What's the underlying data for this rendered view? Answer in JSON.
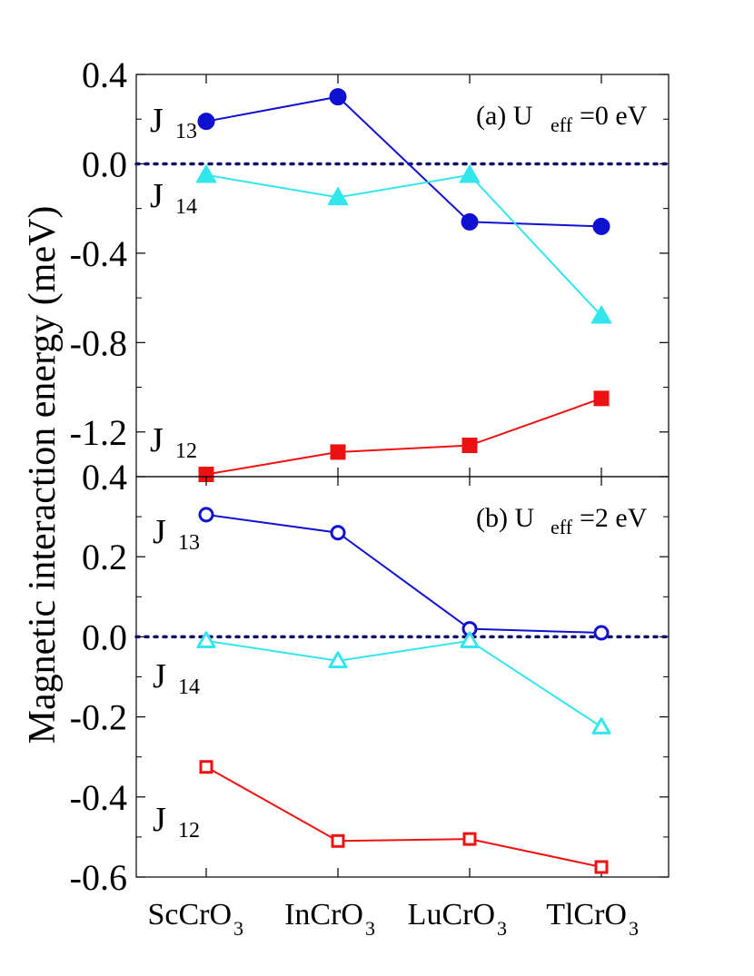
{
  "chart_data": [
    {
      "type": "line",
      "panel_label": "(a) U",
      "panel_label_sub": "eff",
      "panel_label_tail": "=0 eV",
      "ylabel": "Magnetic interaction energy (meV)",
      "categories": [
        "ScCrO3",
        "InCrO3",
        "LuCrO3",
        "TlCrO3"
      ],
      "ylim": [
        -1.4,
        0.4
      ],
      "yticks": [
        "0.4",
        "0.0",
        "-0.4",
        "-0.8",
        "-1.2"
      ],
      "ytick_values": [
        0.4,
        0.0,
        -0.4,
        -0.8,
        -1.2
      ],
      "zero_line": "dotted",
      "series": [
        {
          "name": "J13",
          "label_main": "J",
          "label_sub": "13",
          "color": "#1010d0",
          "marker": "circle",
          "filled": true,
          "values": [
            0.19,
            0.3,
            -0.26,
            -0.28
          ]
        },
        {
          "name": "J14",
          "label_main": "J",
          "label_sub": "14",
          "color": "#33e6ee",
          "marker": "triangle",
          "filled": true,
          "values": [
            -0.05,
            -0.15,
            -0.05,
            -0.68
          ]
        },
        {
          "name": "J12",
          "label_main": "J",
          "label_sub": "12",
          "color": "#ee1111",
          "marker": "square",
          "filled": true,
          "values": [
            -1.39,
            -1.29,
            -1.26,
            -1.05
          ]
        }
      ]
    },
    {
      "type": "line",
      "panel_label": "(b) U",
      "panel_label_sub": "eff",
      "panel_label_tail": "=2 eV",
      "categories": [
        "ScCrO3",
        "InCrO3",
        "LuCrO3",
        "TlCrO3"
      ],
      "ylim": [
        -0.6,
        0.4
      ],
      "yticks": [
        "0.4",
        "0.2",
        "0.0",
        "-0.2",
        "-0.4",
        "-0.6"
      ],
      "ytick_values": [
        0.4,
        0.2,
        0.0,
        -0.2,
        -0.4,
        -0.6
      ],
      "zero_line": "dotted",
      "series": [
        {
          "name": "J13",
          "label_main": "J",
          "label_sub": "13",
          "color": "#1010d0",
          "marker": "circle",
          "filled": false,
          "values": [
            0.305,
            0.26,
            0.02,
            0.01
          ]
        },
        {
          "name": "J14",
          "label_main": "J",
          "label_sub": "14",
          "color": "#33e6ee",
          "marker": "triangle",
          "filled": false,
          "values": [
            -0.01,
            -0.06,
            -0.01,
            -0.225
          ]
        },
        {
          "name": "J12",
          "label_main": "J",
          "label_sub": "12",
          "color": "#ee1111",
          "marker": "square",
          "filled": false,
          "values": [
            -0.325,
            -0.51,
            -0.505,
            -0.575
          ]
        }
      ]
    }
  ],
  "xtick_labels": [
    {
      "main": "ScCrO",
      "sub": "3"
    },
    {
      "main": "InCrO",
      "sub": "3"
    },
    {
      "main": "LuCrO",
      "sub": "3"
    },
    {
      "main": "TlCrO",
      "sub": "3"
    }
  ]
}
